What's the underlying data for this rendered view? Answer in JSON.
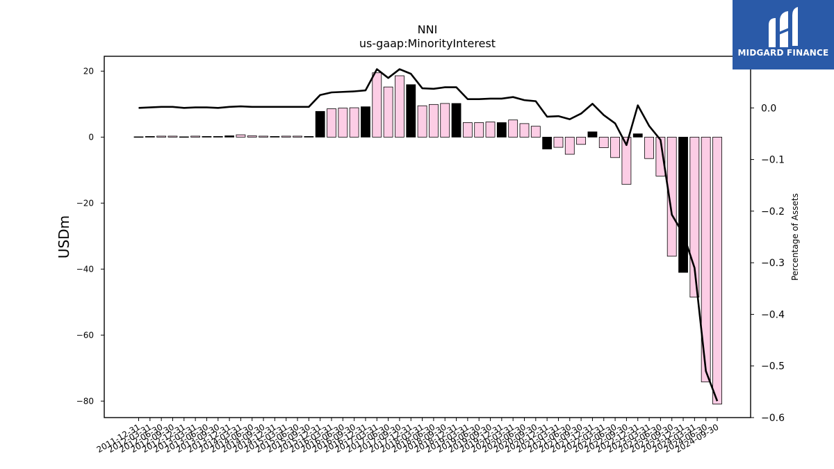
{
  "logo": {
    "text": "MIDGARD FINANCE"
  },
  "chart_data": {
    "type": "bar",
    "title": "NNI",
    "subtitle": "us-gaap:MinorityInterest",
    "ylabel": "USDm",
    "ylabel_right": "Percentage of Assets",
    "ylim": [
      -85,
      24.5
    ],
    "ylim_right": [
      -0.6,
      0.1
    ],
    "yticks": [
      20,
      0,
      -20,
      -40,
      -60,
      -80
    ],
    "yticks_right": [
      0.0,
      -0.1,
      -0.2,
      -0.3,
      -0.4,
      -0.5,
      -0.6
    ],
    "grid": false,
    "categories": [
      "2011-12-31",
      "2012-03-31",
      "2012-06-30",
      "2012-09-30",
      "2012-12-31",
      "2013-03-31",
      "2013-06-30",
      "2013-09-30",
      "2013-12-31",
      "2014-03-31",
      "2014-06-30",
      "2014-09-30",
      "2014-12-31",
      "2015-03-31",
      "2015-06-30",
      "2015-09-30",
      "2015-12-31",
      "2016-03-31",
      "2016-06-30",
      "2016-09-30",
      "2016-12-31",
      "2017-03-31",
      "2017-06-30",
      "2017-09-30",
      "2017-12-31",
      "2018-03-31",
      "2018-06-30",
      "2018-09-30",
      "2018-12-31",
      "2019-03-31",
      "2019-06-30",
      "2019-09-30",
      "2019-12-31",
      "2020-03-31",
      "2020-06-30",
      "2020-09-30",
      "2020-12-31",
      "2021-03-31",
      "2021-06-30",
      "2021-09-30",
      "2021-12-31",
      "2022-03-31",
      "2022-06-30",
      "2022-09-30",
      "2022-12-31",
      "2023-03-31",
      "2023-06-30",
      "2023-09-30",
      "2023-12-31",
      "2024-03-31",
      "2024-06-30",
      "2024-09-30"
    ],
    "series": [
      {
        "type": "bar",
        "values": [
          0.1,
          0.2,
          0.3,
          0.3,
          0.1,
          0.3,
          0.2,
          0.2,
          0.4,
          0.7,
          0.4,
          0.3,
          0.2,
          0.3,
          0.3,
          0.2,
          7.8,
          8.6,
          8.8,
          8.9,
          9.2,
          19.5,
          15.2,
          18.6,
          15.9,
          9.5,
          9.9,
          10.2,
          10.2,
          4.4,
          4.4,
          4.6,
          4.4,
          5.2,
          4.1,
          3.3,
          -3.6,
          -3.1,
          -5.2,
          -2.2,
          1.6,
          -3.2,
          -6.2,
          -14.3,
          1.0,
          -6.5,
          -11.8,
          -36.1,
          -41.0,
          -48.5,
          -74.2,
          -80.9
        ],
        "emphasis": [
          false,
          true,
          false,
          false,
          false,
          false,
          true,
          true,
          true,
          false,
          false,
          false,
          true,
          false,
          false,
          true,
          true,
          false,
          false,
          false,
          true,
          false,
          false,
          false,
          true,
          false,
          false,
          false,
          true,
          false,
          false,
          false,
          true,
          false,
          false,
          false,
          true,
          false,
          false,
          false,
          true,
          false,
          false,
          false,
          true,
          false,
          false,
          false,
          true,
          false,
          false,
          false
        ]
      },
      {
        "type": "line",
        "axis": "right",
        "values": [
          0.0,
          0.001,
          0.002,
          0.002,
          0.0,
          0.001,
          0.001,
          0.0,
          0.002,
          0.003,
          0.002,
          0.002,
          0.002,
          0.002,
          0.002,
          0.002,
          0.025,
          0.03,
          0.031,
          0.032,
          0.034,
          0.075,
          0.058,
          0.075,
          0.066,
          0.038,
          0.037,
          0.04,
          0.04,
          0.017,
          0.017,
          0.018,
          0.018,
          0.021,
          0.015,
          0.013,
          -0.017,
          -0.016,
          -0.022,
          -0.011,
          0.008,
          -0.014,
          -0.03,
          -0.072,
          0.005,
          -0.035,
          -0.062,
          -0.207,
          -0.244,
          -0.31,
          -0.51,
          -0.568
        ]
      }
    ],
    "colors": {
      "bar_fill": "#fccde5",
      "bar_emphasis": "#000000",
      "bar_stroke": "#000000",
      "line": "#000000",
      "logo_bg": "#2a5aa8"
    }
  }
}
